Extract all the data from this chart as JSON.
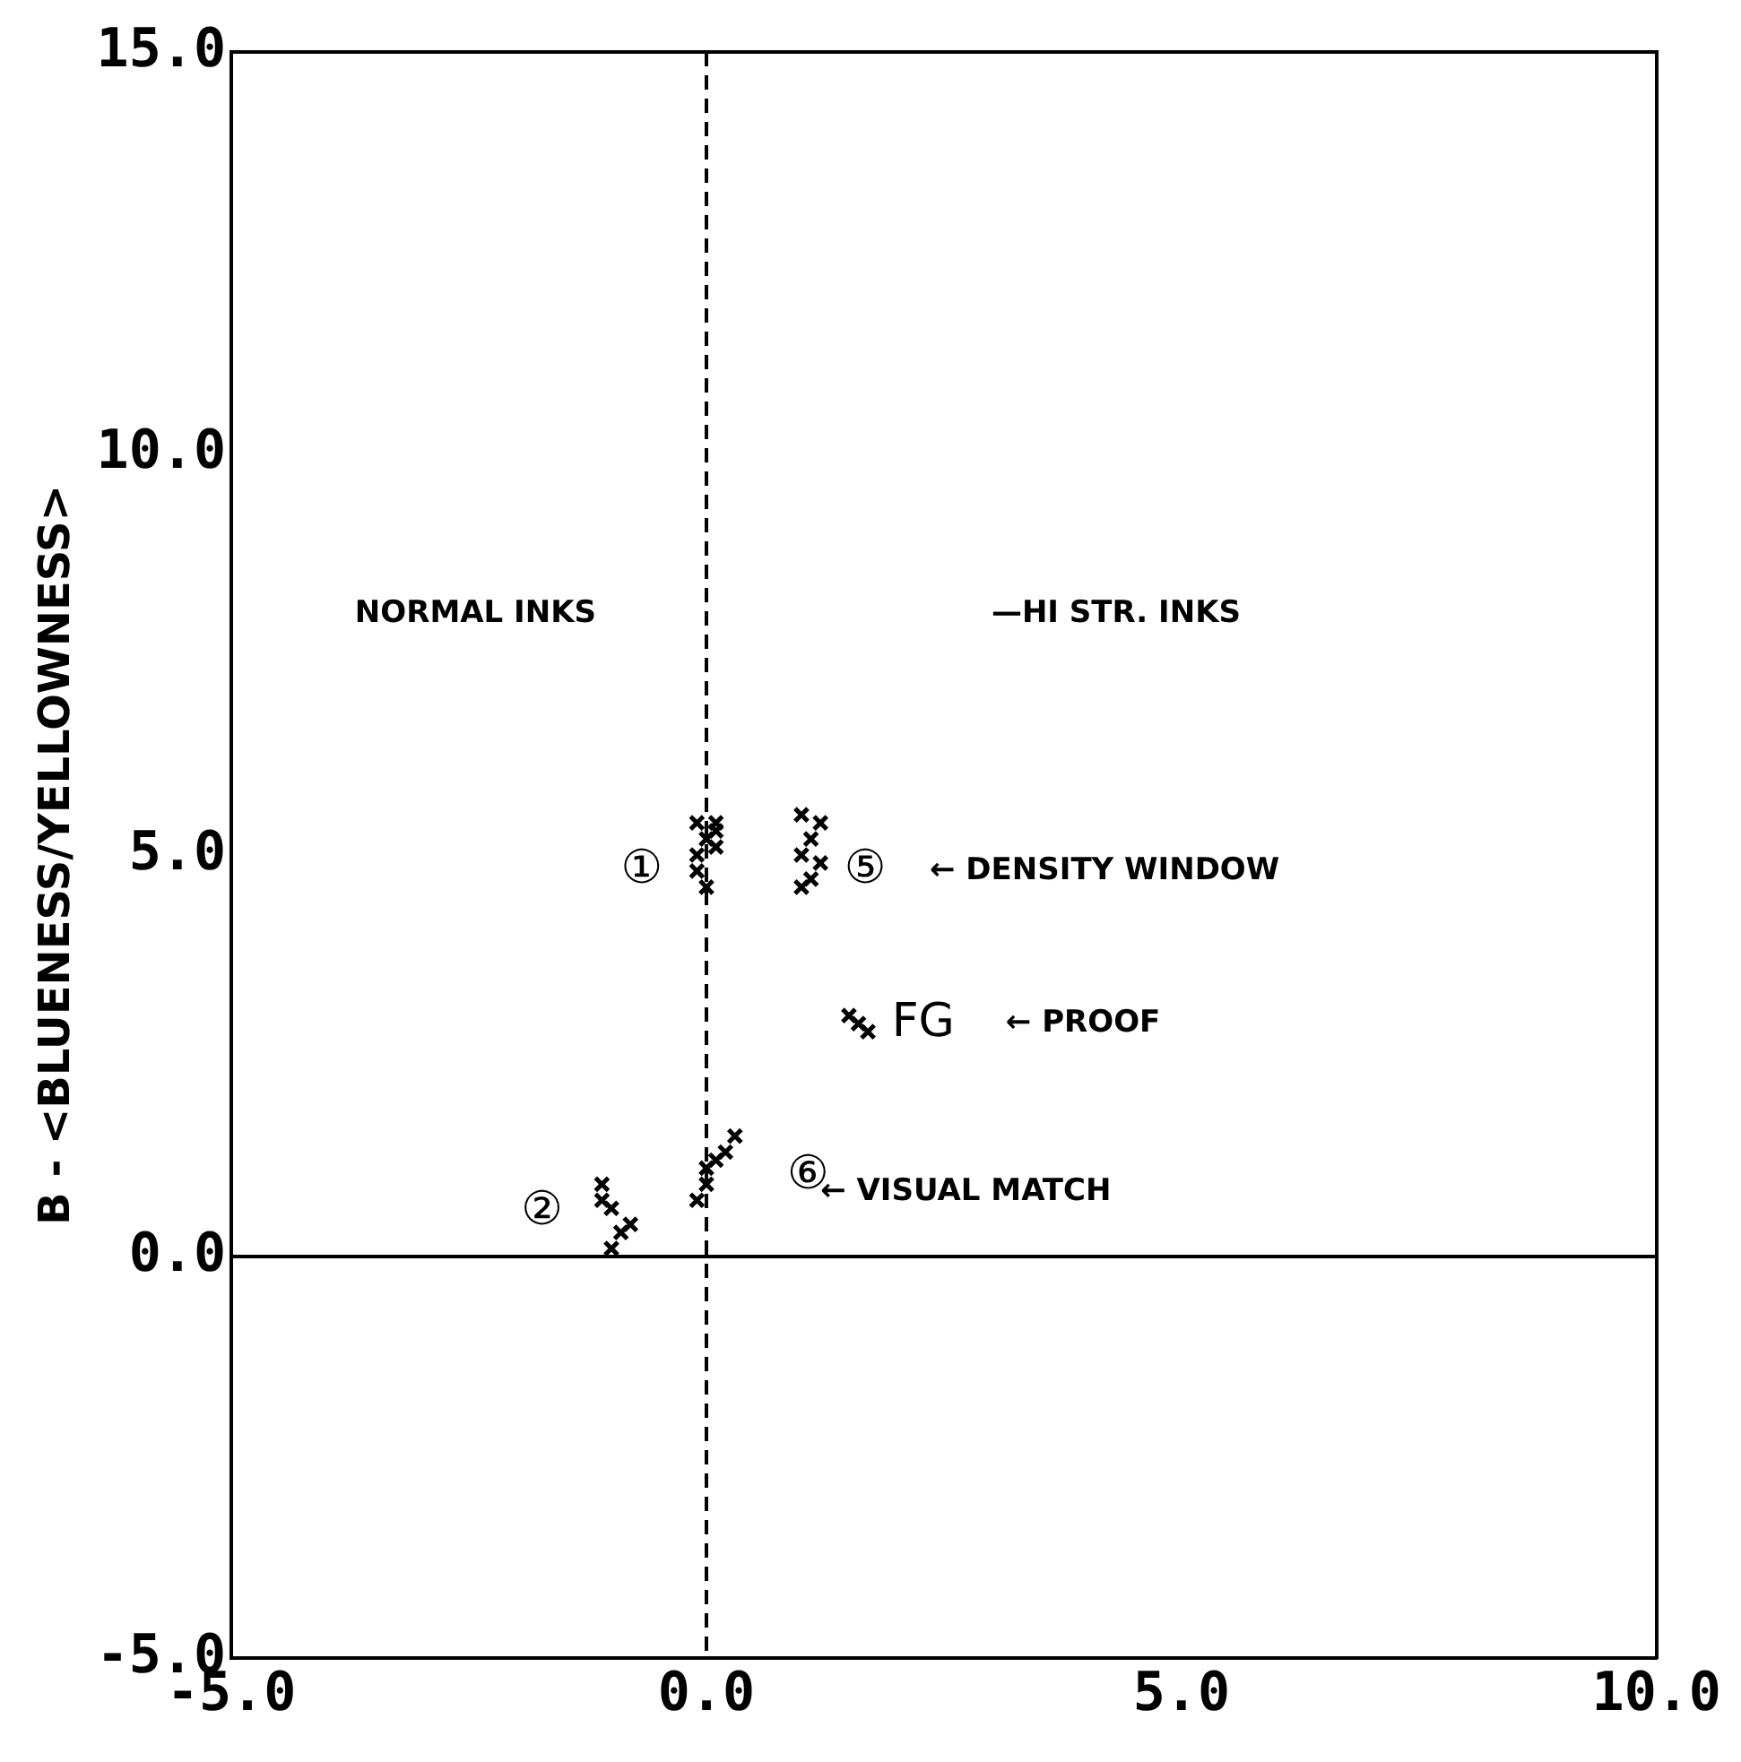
{
  "chart_data": {
    "type": "scatter",
    "ylabel": "B - <BLUENESS/YELLOWNESS>",
    "xlim": [
      -5,
      10
    ],
    "ylim": [
      -5,
      15
    ],
    "xticks": [
      {
        "value": -5,
        "label": "-5.0"
      },
      {
        "value": 0,
        "label": "0.0"
      },
      {
        "value": 5,
        "label": "5.0"
      },
      {
        "value": 10,
        "label": "10.0"
      }
    ],
    "yticks": [
      {
        "value": -5,
        "label": "-5.0"
      },
      {
        "value": 0,
        "label": "0.0"
      },
      {
        "value": 5,
        "label": "5.0"
      },
      {
        "value": 10,
        "label": "10.0"
      },
      {
        "value": 15,
        "label": "15.0"
      }
    ],
    "grid": false,
    "legend": false,
    "marker": "cross",
    "series": [
      {
        "color": "#000000",
        "x": [
          -0.1,
          0.1,
          0,
          -0.1,
          0.1,
          -0.1,
          0,
          0.1,
          1.0,
          1.2,
          1.1,
          1.0,
          1.2,
          1.1,
          1.0,
          1.5,
          1.6,
          1.7,
          0.3,
          0.2,
          0.1,
          0,
          0,
          -0.1,
          -1.1,
          -1.1,
          -1.0,
          -0.8,
          -0.9,
          -1.0
        ],
        "values": [
          5.4,
          5.4,
          5.2,
          5.0,
          5.1,
          4.8,
          4.6,
          5.3,
          5.5,
          5.4,
          5.2,
          5.0,
          4.9,
          4.7,
          4.6,
          3.0,
          2.9,
          2.8,
          1.5,
          1.3,
          1.2,
          1.1,
          0.9,
          0.7,
          0.9,
          0.7,
          0.6,
          0.4,
          0.3,
          0.1
        ]
      }
    ],
    "ref_lines": [
      {
        "axis": "x",
        "value": 0,
        "color": "#000000",
        "line_style": "dashed"
      },
      {
        "axis": "y",
        "value": 0,
        "color": "#000000",
        "line_style": "solid"
      }
    ],
    "annotations": [
      "NORMAL INKS",
      "—HI STR. INKS",
      "①",
      "⑤",
      "← DENSITY WINDOW",
      "FG",
      "← PROOF",
      "⑥",
      "← VISUAL MATCH",
      "②"
    ]
  }
}
